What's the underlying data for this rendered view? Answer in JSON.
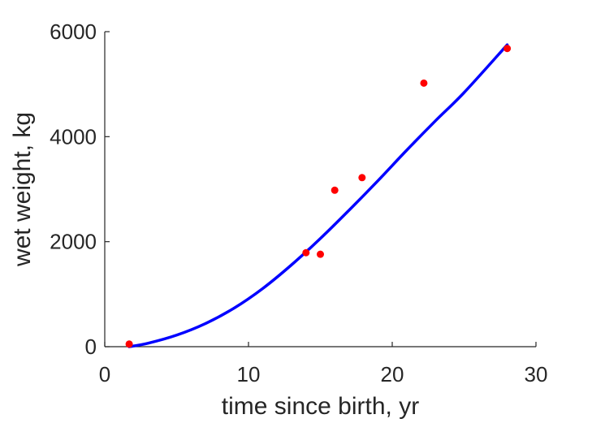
{
  "chart_data": {
    "type": "scatter",
    "xlabel": "time since birth, yr",
    "ylabel": "wet weight, kg",
    "xlim": [
      0,
      30
    ],
    "ylim": [
      0,
      6000
    ],
    "xticks": [
      0,
      10,
      20,
      30
    ],
    "yticks": [
      0,
      2000,
      4000,
      6000
    ],
    "grid": false,
    "series": [
      {
        "kind": "points",
        "color": "#ff0000",
        "x": [
          1.7,
          14.0,
          15.0,
          16.0,
          17.9,
          22.2,
          28.0
        ],
        "y": [
          50,
          1790,
          1760,
          2980,
          3220,
          5020,
          5680
        ]
      },
      {
        "kind": "fit-line",
        "color": "#0000ff",
        "x": [
          1.7,
          3,
          5,
          7,
          9,
          11,
          13,
          15,
          17,
          19,
          21,
          23,
          25,
          28
        ],
        "y": [
          0,
          65,
          220,
          440,
          735,
          1110,
          1560,
          2060,
          2600,
          3160,
          3740,
          4300,
          4840,
          5750
        ]
      }
    ]
  }
}
